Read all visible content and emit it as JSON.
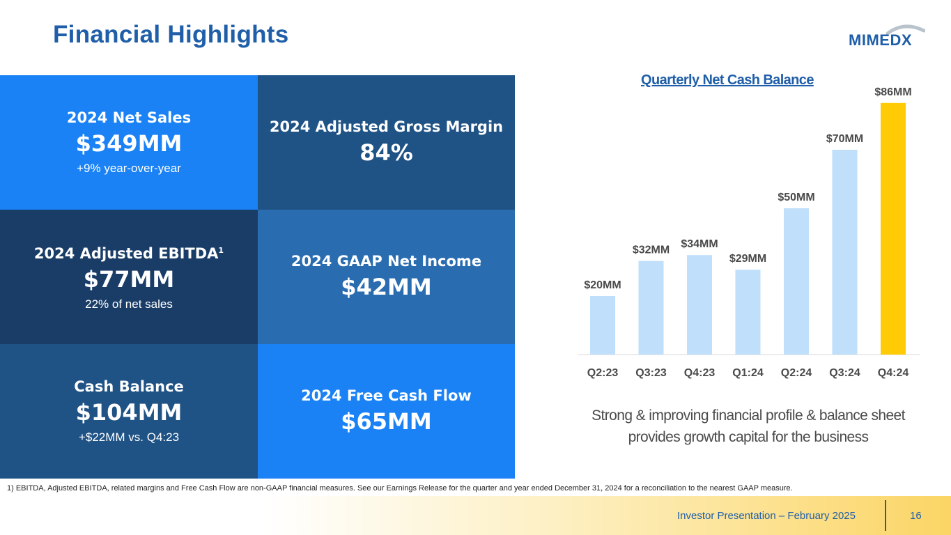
{
  "header": {
    "title": "Financial Highlights",
    "logo_text": "MIMEDX"
  },
  "tiles": {
    "net_sales": {
      "label": "2024 Net Sales",
      "value": "$349MM",
      "sub": "+9% year-over-year",
      "color": "#1a82f5"
    },
    "gross_margin": {
      "label": "2024 Adjusted Gross Margin",
      "value": "84%",
      "color": "#1f5285"
    },
    "ebitda": {
      "label": "2024 Adjusted EBITDA",
      "footnote_mark": "1",
      "value": "$77MM",
      "sub": "22% of net sales",
      "color": "#1a3d68"
    },
    "net_income": {
      "label": "2024 GAAP Net Income",
      "value": "$42MM",
      "color": "#2a6cb0"
    },
    "cash_balance": {
      "label": "Cash Balance",
      "value": "$104MM",
      "sub": "+$22MM vs. Q4:23",
      "color": "#1f5285"
    },
    "free_cash_flow": {
      "label": "2024 Free Cash Flow",
      "value": "$65MM",
      "color": "#1a82f5"
    }
  },
  "chart_data": {
    "type": "bar",
    "title": "Quarterly Net Cash Balance",
    "categories": [
      "Q2:23",
      "Q3:23",
      "Q4:23",
      "Q1:24",
      "Q2:24",
      "Q3:24",
      "Q4:24"
    ],
    "values": [
      20,
      32,
      34,
      29,
      50,
      70,
      86
    ],
    "data_labels": [
      "$20MM",
      "$32MM",
      "$34MM",
      "$29MM",
      "$50MM",
      "$70MM",
      "$86MM"
    ],
    "units": "$MM",
    "ylim": [
      0,
      90
    ],
    "highlight_index": 6,
    "colors": {
      "bar": "#bfdffb",
      "highlight": "#ffcb05",
      "label": "#4a4a4a",
      "axis": "#d9d9d9"
    }
  },
  "tagline": {
    "line1": "Strong & improving financial profile & balance sheet",
    "line2": "provides growth capital for the business"
  },
  "footnote": "1) EBITDA, Adjusted EBITDA, related margins and Free Cash Flow are non-GAAP financial measures. See our Earnings Release for the quarter and year ended December 31, 2024 for a reconciliation to the nearest GAAP measure.",
  "footer": {
    "text": "Investor Presentation – February 2025",
    "page": "16"
  }
}
